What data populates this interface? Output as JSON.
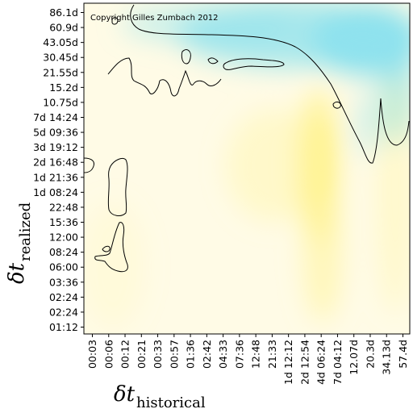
{
  "chart_data": {
    "type": "heatmap",
    "annotation": "Copyright Gilles Zumbach 2012",
    "xlabel": {
      "symbol": "δt",
      "subscript": "historical"
    },
    "ylabel": {
      "symbol": "δt",
      "subscript": "realized"
    },
    "x_ticks": [
      "00:03",
      "00:06",
      "00:12",
      "00:21",
      "00:33",
      "00:57",
      "01:36",
      "02:42",
      "04:33",
      "07:36",
      "12:48",
      "21:33",
      "1d 12:12",
      "2d 12:54",
      "4d 06:24",
      "7d 04:12",
      "12.07d",
      "20.3d",
      "34.13d",
      "57.4d"
    ],
    "y_ticks": [
      "86.1d",
      "60.9d",
      "43.05d",
      "30.45d",
      "21.55d",
      "15.2d",
      "10.75d",
      "7d 14:24",
      "5d 09:36",
      "3d 19:12",
      "2d 16:48",
      "1d 21:36",
      "1d 08:24",
      "22:48",
      "15:36",
      "12:00",
      "08:24",
      "06:00",
      "03:36",
      "02:24",
      "02:24",
      "01:12"
    ],
    "colors": {
      "cyan": "#8ee2ee",
      "yellow": "#fff394",
      "background": "#fffbe6",
      "contour": "#000000",
      "frame": "#000000"
    }
  }
}
